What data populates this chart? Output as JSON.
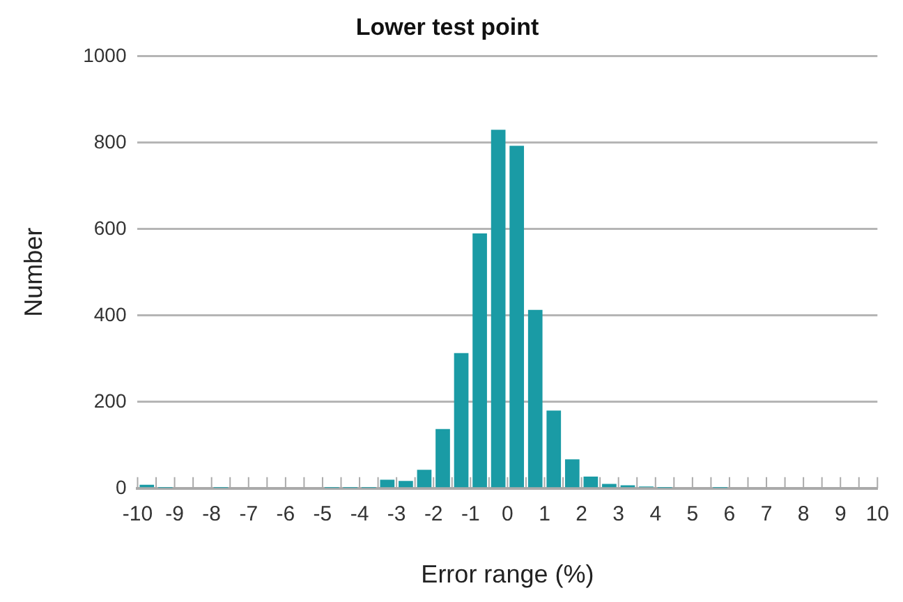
{
  "chart_data": {
    "type": "histogram",
    "title": "Lower test point",
    "xlabel": "Error range (%)",
    "ylabel": "Number",
    "bins": [
      -10,
      -9.5,
      -9,
      -8.5,
      -8,
      -7.5,
      -7,
      -6.5,
      -6,
      -5.5,
      -5,
      -4.5,
      -4,
      -3.5,
      -3,
      -2.5,
      -2,
      -1.5,
      -1,
      -0.5,
      0,
      0.5,
      1,
      1.5,
      2,
      2.5,
      3,
      3.5,
      4,
      4.5,
      5,
      5.5,
      6,
      6.5,
      7,
      7.5,
      8,
      8.5,
      9,
      9.5,
      10
    ],
    "values": [
      8,
      1,
      0,
      0,
      1,
      0,
      0,
      0,
      0,
      0,
      1,
      1,
      1,
      20,
      17,
      43,
      137,
      313,
      590,
      830,
      793,
      413,
      180,
      67,
      27,
      10,
      7,
      4,
      1,
      0,
      0,
      1,
      0,
      0,
      0,
      0,
      0,
      0,
      0,
      0
    ],
    "color": "#1a9ba5",
    "xlim": [
      -10,
      10
    ],
    "xticks": [
      -10,
      {
        "value": -9.5,
        "label": null
      },
      -9,
      {
        "value": -8.5,
        "label": null
      },
      -8,
      {
        "value": -7.5,
        "label": null
      },
      -7,
      {
        "value": -6.5,
        "label": null
      },
      -6,
      {
        "value": -5.5,
        "label": null
      },
      -5,
      {
        "value": -4.5,
        "label": null
      },
      -4,
      {
        "value": -3.5,
        "label": null
      },
      -3,
      {
        "value": -2.5,
        "label": null
      },
      -2,
      {
        "value": -1.5,
        "label": null
      },
      -1,
      {
        "value": -0.5,
        "label": null
      },
      0,
      {
        "value": 0.5,
        "label": null
      },
      1,
      {
        "value": 1.5,
        "label": null
      },
      2,
      {
        "value": 2.5,
        "label": null
      },
      3,
      {
        "value": 3.5,
        "label": null
      },
      4,
      {
        "value": 4.5,
        "label": null
      },
      5,
      {
        "value": 5.5,
        "label": null
      },
      6,
      {
        "value": 6.5,
        "label": null
      },
      7,
      {
        "value": 7.5,
        "label": null
      },
      8,
      {
        "value": 8.5,
        "label": null
      },
      9,
      {
        "value": 9.5,
        "label": null
      },
      10
    ],
    "ylim": [
      0,
      1000
    ],
    "yticks": [
      0,
      200,
      400,
      600,
      800,
      1000
    ],
    "grid": "y",
    "legend": false
  }
}
